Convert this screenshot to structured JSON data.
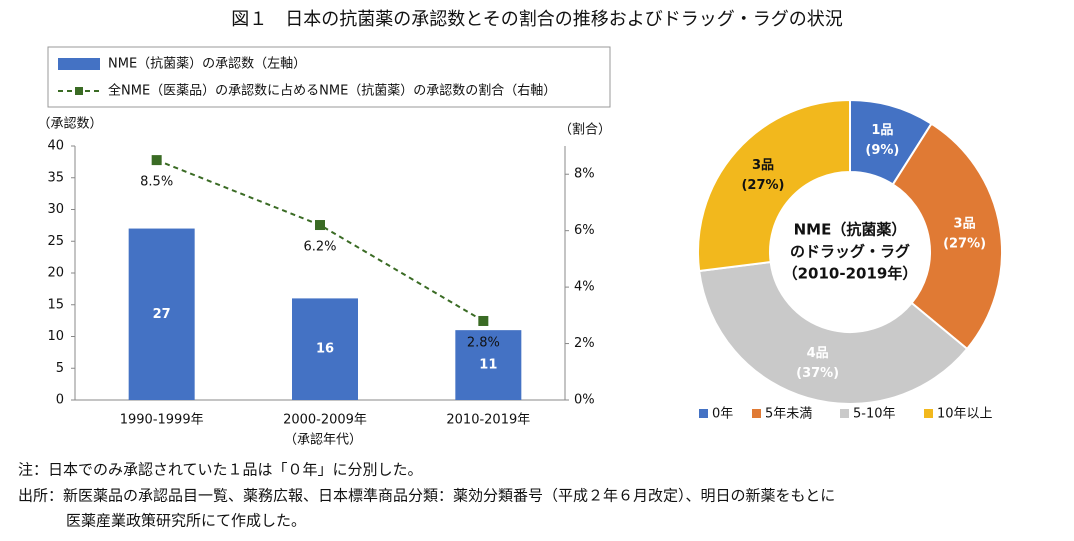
{
  "title": "図１　日本の抗菌薬の承認数とその割合の推移およびドラッグ・ラグの状況",
  "chart_data": [
    {
      "type": "bar",
      "categories": [
        "1990-1999年",
        "2000-2009年",
        "2010-2019年"
      ],
      "x_label": "（承認年代）",
      "y_label": "（承認数）",
      "y2_label": "（割合）",
      "series": [
        {
          "name": "NME（抗菌薬）の承認数（左軸）",
          "type": "bar",
          "color": "#4472c4",
          "values": [
            27,
            16,
            11
          ]
        },
        {
          "name": "全NME（医薬品）の承認数に占めるNME（抗菌薬）の承認数の割合（右軸）",
          "type": "line",
          "axis": "y2",
          "color": "#3a6b24",
          "dashed": true,
          "values": [
            8.5,
            6.2,
            2.8
          ],
          "value_labels": [
            "8.5%",
            "6.2%",
            "2.8%"
          ]
        }
      ],
      "ylim": [
        0,
        40
      ],
      "yticks": [
        0,
        5,
        10,
        15,
        20,
        25,
        30,
        35,
        40
      ],
      "y2lim": [
        0,
        9
      ],
      "y2ticks": [
        {
          "value": 0,
          "label": "0%"
        },
        {
          "value": 2,
          "label": "2%"
        },
        {
          "value": 4,
          "label": "4%"
        },
        {
          "value": 6,
          "label": "6%"
        },
        {
          "value": 8,
          "label": "8%"
        }
      ]
    },
    {
      "type": "pie",
      "donut": true,
      "center_label": [
        "NME（抗菌薬）",
        "のドラッグ・ラグ",
        "（2010-2019年）"
      ],
      "categories": [
        "0年",
        "5年未満",
        "5-10年",
        "10年以上"
      ],
      "values": [
        9,
        27,
        37,
        27
      ],
      "value_labels": [
        "(9%)",
        "(27%)",
        "(37%)",
        "(27%)"
      ],
      "count_labels": [
        "1品",
        "3品",
        "4品",
        "3品"
      ],
      "colors": [
        "#4472c4",
        "#e07a34",
        "#c9c9c9",
        "#f2b81d"
      ],
      "legend": "bottom"
    }
  ],
  "notes": [
    "注：日本でのみ承認されていた１品は「０年」に分別した。",
    "出所：新医薬品の承認品目一覧、薬務広報、日本標準商品分類：薬効分類番号（平成２年６月改定）、明日の新薬をもとに",
    "医薬産業政策研究所にて作成した。"
  ]
}
